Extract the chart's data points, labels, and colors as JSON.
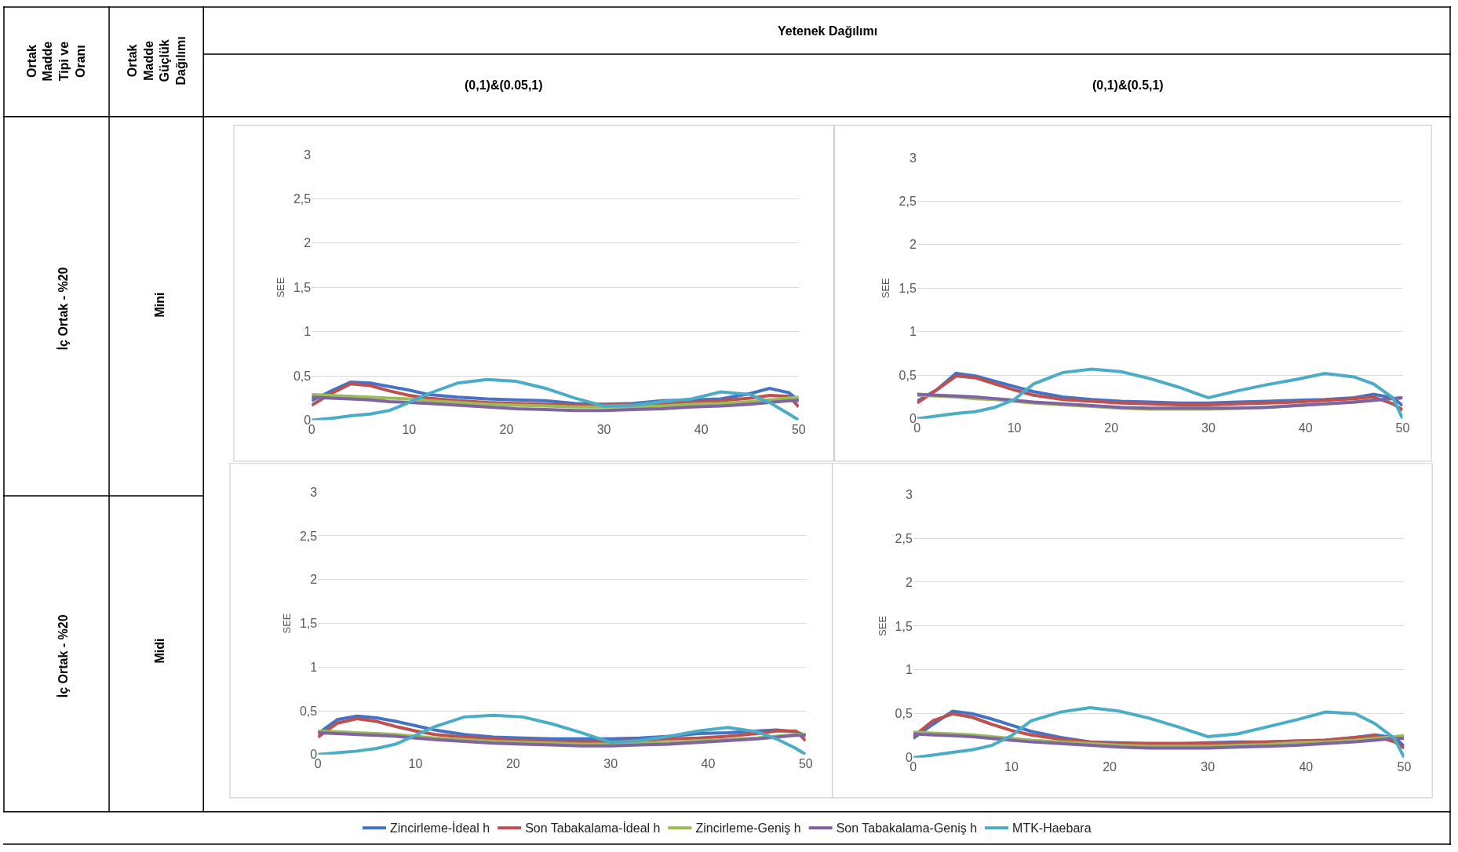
{
  "chart_data": [
    {
      "type": "other",
      "annotations": [
        "Ortak Madde Tipi ve Oranı",
        "Ortak Madde Güçlük Dağılımı",
        "Yetenek Dağılımı",
        "(0,1)&(0.05,1)",
        "(0,1)&(0.5,1)",
        "İç Ortak - %20",
        "Mini",
        "İç Ortak - %20",
        "Midi"
      ]
    },
    {
      "type": "line",
      "ylabel": "SEE",
      "x": [
        0,
        2,
        4,
        6,
        8,
        10,
        12,
        15,
        18,
        21,
        24,
        27,
        30,
        33,
        36,
        39,
        42,
        45,
        47,
        49,
        50
      ],
      "xlim": [
        0,
        50
      ],
      "xticks": [
        0,
        10,
        20,
        30,
        40,
        50
      ],
      "ylim": [
        0,
        3
      ],
      "yticks": [
        0,
        {
          "value": 0.5,
          "label": "0,5"
        },
        1,
        {
          "value": 1.5,
          "label": "1,5"
        },
        2,
        {
          "value": 2.5,
          "label": "2,5"
        },
        3
      ],
      "grid": "y",
      "legend": "bottom",
      "marker": "none",
      "line_style": "solid",
      "series": [
        {
          "name": "Zincirleme-İdeal h",
          "color": "#4472c4",
          "values": [
            0.22,
            0.33,
            0.43,
            0.42,
            0.38,
            0.34,
            0.29,
            0.26,
            0.24,
            0.23,
            0.22,
            0.19,
            0.18,
            0.19,
            0.22,
            0.23,
            0.24,
            0.3,
            0.36,
            0.31,
            0.22
          ]
        },
        {
          "name": "Son Tabakalama-İdeal h",
          "color": "#c0504d",
          "values": [
            0.17,
            0.3,
            0.41,
            0.39,
            0.33,
            0.28,
            0.25,
            0.22,
            0.2,
            0.19,
            0.18,
            0.17,
            0.17,
            0.18,
            0.19,
            0.2,
            0.22,
            0.25,
            0.28,
            0.27,
            0.15
          ]
        },
        {
          "name": "Zincirleme-Geniş h",
          "color": "#9bbb59",
          "values": [
            0.29,
            0.28,
            0.27,
            0.26,
            0.25,
            0.24,
            0.22,
            0.2,
            0.18,
            0.17,
            0.16,
            0.15,
            0.15,
            0.15,
            0.16,
            0.18,
            0.19,
            0.21,
            0.23,
            0.25,
            0.26
          ]
        },
        {
          "name": "Son Tabakalama-Geniş h",
          "color": "#8064a2",
          "values": [
            0.26,
            0.25,
            0.24,
            0.23,
            0.21,
            0.2,
            0.19,
            0.17,
            0.15,
            0.13,
            0.12,
            0.11,
            0.11,
            0.12,
            0.13,
            0.15,
            0.16,
            0.18,
            0.2,
            0.22,
            0.22
          ]
        },
        {
          "name": "MTK-Haebara",
          "color": "#4bacc6",
          "values": [
            0,
            0.02,
            0.05,
            0.07,
            0.11,
            0.2,
            0.3,
            0.42,
            0.46,
            0.44,
            0.36,
            0.25,
            0.16,
            0.17,
            0.21,
            0.24,
            0.32,
            0.29,
            0.2,
            0.07,
            0
          ]
        }
      ]
    },
    {
      "type": "line",
      "ylabel": "SEE",
      "x": [
        0,
        2,
        4,
        6,
        8,
        10,
        12,
        15,
        18,
        21,
        24,
        27,
        30,
        33,
        36,
        39,
        42,
        45,
        47,
        49,
        50
      ],
      "xlim": [
        0,
        50
      ],
      "xticks": [
        0,
        10,
        20,
        30,
        40,
        50
      ],
      "ylim": [
        0,
        3
      ],
      "yticks": [
        0,
        {
          "value": 0.5,
          "label": "0,5"
        },
        1,
        {
          "value": 1.5,
          "label": "1,5"
        },
        2,
        {
          "value": 2.5,
          "label": "2,5"
        },
        3
      ],
      "grid": "y",
      "legend": "bottom",
      "marker": "none",
      "line_style": "solid",
      "series": [
        {
          "color": "#4472c4",
          "values": [
            0.2,
            0.33,
            0.52,
            0.49,
            0.43,
            0.37,
            0.31,
            0.25,
            0.22,
            0.2,
            0.19,
            0.18,
            0.18,
            0.19,
            0.2,
            0.21,
            0.22,
            0.24,
            0.28,
            0.24,
            0.15
          ]
        },
        {
          "color": "#c0504d",
          "values": [
            0.18,
            0.33,
            0.49,
            0.47,
            0.4,
            0.33,
            0.27,
            0.22,
            0.2,
            0.18,
            0.17,
            0.16,
            0.16,
            0.17,
            0.18,
            0.19,
            0.21,
            0.23,
            0.25,
            0.17,
            0.1
          ]
        },
        {
          "color": "#9bbb59",
          "values": [
            0.27,
            0.26,
            0.25,
            0.23,
            0.22,
            0.2,
            0.18,
            0.16,
            0.14,
            0.12,
            0.11,
            0.11,
            0.11,
            0.12,
            0.13,
            0.15,
            0.17,
            0.19,
            0.21,
            0.23,
            0.24
          ]
        },
        {
          "color": "#8064a2",
          "values": [
            0.28,
            0.27,
            0.26,
            0.25,
            0.23,
            0.21,
            0.19,
            0.17,
            0.15,
            0.13,
            0.12,
            0.12,
            0.12,
            0.12,
            0.13,
            0.15,
            0.17,
            0.19,
            0.21,
            0.23,
            0.24
          ]
        },
        {
          "color": "#4bacc6",
          "values": [
            0,
            0.03,
            0.06,
            0.08,
            0.13,
            0.22,
            0.4,
            0.53,
            0.57,
            0.54,
            0.46,
            0.36,
            0.24,
            0.32,
            0.39,
            0.45,
            0.52,
            0.48,
            0.4,
            0.24,
            0
          ]
        }
      ]
    },
    {
      "type": "line",
      "ylabel": "SEE",
      "x": [
        0,
        2,
        4,
        6,
        8,
        10,
        12,
        15,
        18,
        21,
        24,
        27,
        30,
        33,
        36,
        39,
        42,
        45,
        47,
        49,
        50
      ],
      "xlim": [
        0,
        50
      ],
      "xticks": [
        0,
        10,
        20,
        30,
        40,
        50
      ],
      "ylim": [
        0,
        3
      ],
      "yticks": [
        0,
        {
          "value": 0.5,
          "label": "0,5"
        },
        1,
        {
          "value": 1.5,
          "label": "1,5"
        },
        2,
        {
          "value": 2.5,
          "label": "2,5"
        },
        3
      ],
      "grid": "y",
      "legend": "bottom",
      "marker": "none",
      "line_style": "solid",
      "series": [
        {
          "color": "#4472c4",
          "values": [
            0.24,
            0.4,
            0.44,
            0.42,
            0.38,
            0.33,
            0.28,
            0.23,
            0.2,
            0.19,
            0.18,
            0.18,
            0.18,
            0.19,
            0.21,
            0.24,
            0.25,
            0.27,
            0.28,
            0.26,
            0.22
          ]
        },
        {
          "color": "#c0504d",
          "values": [
            0.2,
            0.36,
            0.41,
            0.38,
            0.32,
            0.27,
            0.23,
            0.2,
            0.18,
            0.16,
            0.15,
            0.15,
            0.15,
            0.16,
            0.18,
            0.19,
            0.21,
            0.24,
            0.27,
            0.27,
            0.16
          ]
        },
        {
          "color": "#9bbb59",
          "values": [
            0.27,
            0.26,
            0.25,
            0.24,
            0.23,
            0.21,
            0.19,
            0.17,
            0.15,
            0.14,
            0.13,
            0.12,
            0.12,
            0.13,
            0.14,
            0.16,
            0.17,
            0.19,
            0.21,
            0.23,
            0.23
          ]
        },
        {
          "color": "#8064a2",
          "values": [
            0.25,
            0.24,
            0.23,
            0.22,
            0.21,
            0.19,
            0.17,
            0.15,
            0.13,
            0.12,
            0.11,
            0.1,
            0.1,
            0.11,
            0.12,
            0.14,
            0.16,
            0.18,
            0.2,
            0.22,
            0.22
          ]
        },
        {
          "color": "#4bacc6",
          "values": [
            0,
            0.02,
            0.04,
            0.07,
            0.12,
            0.22,
            0.32,
            0.43,
            0.45,
            0.43,
            0.35,
            0.25,
            0.14,
            0.16,
            0.21,
            0.27,
            0.31,
            0.26,
            0.18,
            0.07,
            0
          ]
        }
      ]
    },
    {
      "type": "line",
      "ylabel": "SEE",
      "x": [
        0,
        2,
        4,
        6,
        8,
        10,
        12,
        15,
        18,
        21,
        24,
        27,
        30,
        33,
        36,
        39,
        42,
        45,
        47,
        49,
        50
      ],
      "xlim": [
        0,
        50
      ],
      "xticks": [
        0,
        10,
        20,
        30,
        40,
        50
      ],
      "ylim": [
        0,
        3
      ],
      "yticks": [
        0,
        {
          "value": 0.5,
          "label": "0,5"
        },
        1,
        {
          "value": 1.5,
          "label": "1,5"
        },
        2,
        {
          "value": 2.5,
          "label": "2,5"
        },
        3
      ],
      "grid": "y",
      "legend": "bottom",
      "marker": "none",
      "line_style": "solid",
      "series": [
        {
          "color": "#4472c4",
          "values": [
            0.22,
            0.38,
            0.53,
            0.5,
            0.44,
            0.37,
            0.3,
            0.23,
            0.18,
            0.17,
            0.16,
            0.16,
            0.17,
            0.18,
            0.18,
            0.19,
            0.2,
            0.23,
            0.26,
            0.23,
            0.13
          ]
        },
        {
          "color": "#c0504d",
          "values": [
            0.24,
            0.42,
            0.5,
            0.46,
            0.38,
            0.31,
            0.26,
            0.21,
            0.18,
            0.16,
            0.16,
            0.16,
            0.16,
            0.17,
            0.18,
            0.19,
            0.2,
            0.23,
            0.25,
            0.18,
            0.11
          ]
        },
        {
          "color": "#9bbb59",
          "values": [
            0.29,
            0.28,
            0.27,
            0.26,
            0.24,
            0.22,
            0.2,
            0.18,
            0.16,
            0.14,
            0.13,
            0.13,
            0.13,
            0.14,
            0.15,
            0.17,
            0.18,
            0.2,
            0.22,
            0.24,
            0.25
          ]
        },
        {
          "color": "#8064a2",
          "values": [
            0.27,
            0.26,
            0.25,
            0.24,
            0.22,
            0.2,
            0.18,
            0.16,
            0.14,
            0.12,
            0.11,
            0.11,
            0.11,
            0.12,
            0.13,
            0.14,
            0.16,
            0.18,
            0.2,
            0.22,
            0.22
          ]
        },
        {
          "color": "#4bacc6",
          "values": [
            0,
            0.03,
            0.06,
            0.09,
            0.14,
            0.25,
            0.42,
            0.52,
            0.57,
            0.53,
            0.45,
            0.35,
            0.24,
            0.27,
            0.35,
            0.43,
            0.52,
            0.5,
            0.39,
            0.22,
            0
          ]
        }
      ]
    }
  ]
}
